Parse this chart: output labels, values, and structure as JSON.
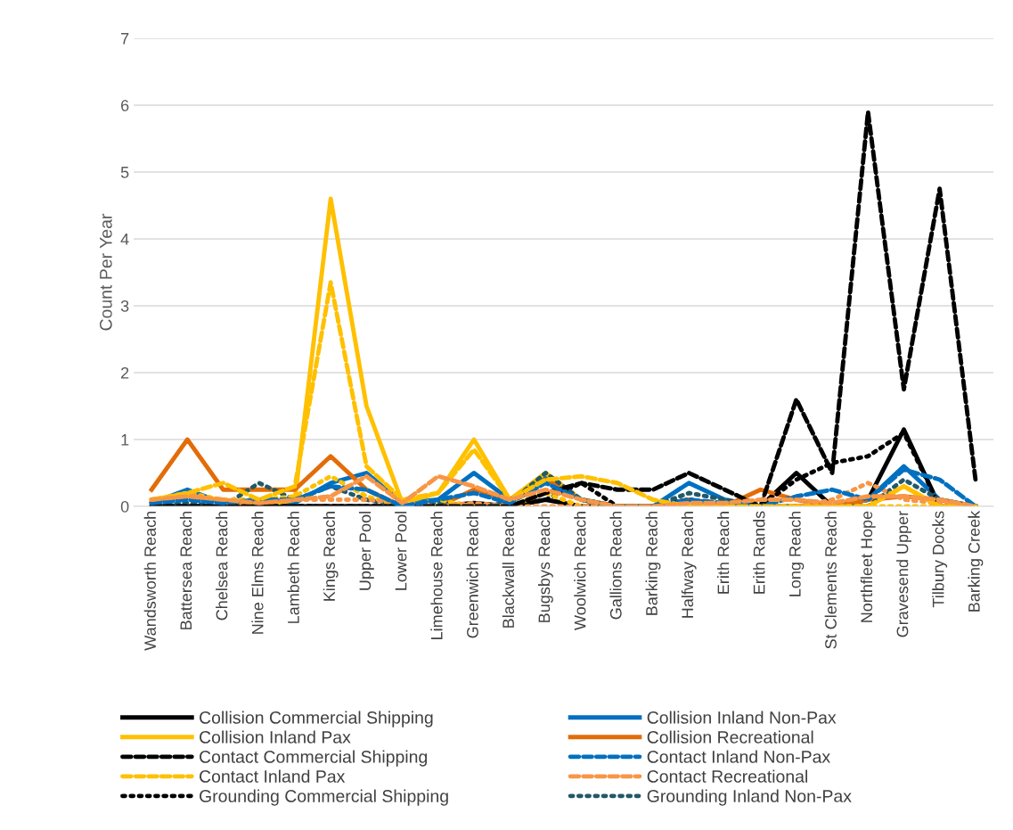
{
  "chart_data": {
    "type": "line",
    "ylabel": "Count Per Year",
    "categories": [
      "Wandsworth Reach",
      "Battersea Reach",
      "Chelsea Reach",
      "Nine Elms Reach",
      "Lambeth Reach",
      "Kings Reach",
      "Upper Pool",
      "Lower Pool",
      "Limehouse Reach",
      "Greenwich Reach",
      "Blackwall Reach",
      "Bugsbys Reach",
      "Woolwich Reach",
      "Gallions Reach",
      "Barking Reach",
      "Halfway Reach",
      "Erith Reach",
      "Erith Rands",
      "Long Reach",
      "St Clements Reach",
      "Northfleet Hope",
      "Gravesend Upper",
      "Tilbury Docks",
      "Barking Creek"
    ],
    "ylim": [
      0,
      7
    ],
    "yticks": [
      0,
      1,
      2,
      3,
      4,
      5,
      6,
      7
    ],
    "grid": "y",
    "legend": "bottom",
    "marker": "none",
    "series": [
      {
        "name": "Collision Commercial Shipping",
        "color": "#000000",
        "line_style": "solid",
        "values": [
          0,
          0,
          0,
          0,
          0,
          0,
          0,
          0,
          0,
          0.05,
          0,
          0.1,
          0,
          0,
          0,
          0.1,
          0,
          0,
          0.5,
          0,
          0.1,
          1.15,
          0,
          0
        ]
      },
      {
        "name": "Collision Inland Non-Pax",
        "color": "#0070c0",
        "line_style": "solid",
        "values": [
          0.05,
          0.25,
          0.05,
          0.05,
          0.05,
          0.35,
          0.5,
          0.05,
          0.1,
          0.5,
          0.1,
          0.45,
          0.1,
          0,
          0,
          0.35,
          0.1,
          0,
          0,
          0,
          0.1,
          0.6,
          0.1,
          0
        ]
      },
      {
        "name": "Collision Inland Pax",
        "color": "#ffc000",
        "line_style": "solid",
        "values": [
          0.1,
          0.15,
          0.1,
          0,
          0.1,
          4.6,
          1.5,
          0.05,
          0.2,
          1.0,
          0.1,
          0.5,
          0.1,
          0,
          0,
          0,
          0,
          0,
          0,
          0,
          0,
          0.3,
          0,
          0
        ]
      },
      {
        "name": "Collision Recreational",
        "color": "#e36c09",
        "line_style": "solid",
        "values": [
          0.25,
          1.0,
          0.25,
          0.25,
          0.25,
          0.75,
          0.25,
          0,
          0,
          0.25,
          0.1,
          0.4,
          0.1,
          0,
          0,
          0.1,
          0,
          0.25,
          0.1,
          0,
          0.1,
          0.15,
          0.1,
          0
        ]
      },
      {
        "name": "Contact Commercial Shipping",
        "color": "#000000",
        "line_style": "dashed",
        "values": [
          0,
          0,
          0,
          0,
          0,
          0,
          0,
          0,
          0,
          0,
          0,
          0.2,
          0.35,
          0.25,
          0.25,
          0.5,
          0.25,
          0,
          1.6,
          0.5,
          5.9,
          1.75,
          4.75,
          0.4
        ]
      },
      {
        "name": "Contact Inland Non-Pax",
        "color": "#0070c0",
        "line_style": "dashed",
        "values": [
          0.05,
          0.1,
          0.05,
          0.1,
          0.1,
          0.3,
          0.25,
          0,
          0.1,
          0.2,
          0.05,
          0.35,
          0.1,
          0,
          0,
          0.1,
          0.05,
          0,
          0.15,
          0.25,
          0.1,
          0.55,
          0.4,
          0
        ]
      },
      {
        "name": "Contact Inland Pax",
        "color": "#ffc000",
        "line_style": "dashed",
        "values": [
          0.1,
          0.2,
          0.35,
          0.1,
          0.3,
          3.35,
          0.6,
          0.1,
          0.2,
          0.85,
          0.1,
          0.4,
          0.45,
          0.35,
          0.1,
          0,
          0,
          0,
          0,
          0,
          0,
          0.3,
          0,
          0
        ]
      },
      {
        "name": "Contact Recreational",
        "color": "#f79646",
        "line_style": "dashed",
        "values": [
          0.1,
          0.15,
          0.1,
          0.05,
          0.1,
          0.15,
          0.45,
          0.05,
          0.45,
          0.3,
          0.1,
          0.25,
          0.1,
          0,
          0,
          0.05,
          0.05,
          0.1,
          0.1,
          0.05,
          0.15,
          0.15,
          0.1,
          0
        ]
      },
      {
        "name": "Grounding Commercial Shipping",
        "color": "#000000",
        "line_style": "dotted",
        "values": [
          0,
          0,
          0,
          0,
          0,
          0,
          0,
          0,
          0,
          0,
          0,
          0.1,
          0.35,
          0,
          0,
          0.1,
          0,
          0,
          0.4,
          0.65,
          0.75,
          1.1,
          0,
          0
        ]
      },
      {
        "name": "Grounding Inland Non-Pax",
        "color": "#215968",
        "line_style": "dotted",
        "values": [
          0,
          0.05,
          0,
          0.35,
          0.1,
          0.3,
          0.1,
          0,
          0.05,
          0,
          0.05,
          0.5,
          0.1,
          0,
          0,
          0.2,
          0.1,
          0,
          0,
          0,
          0,
          0.4,
          0.1,
          0
        ]
      },
      {
        "color": "#ffc000",
        "line_style": "dotted",
        "values": [
          0.1,
          0.2,
          0.1,
          0.1,
          0.15,
          0.45,
          0.15,
          0,
          0.1,
          0,
          0,
          0.2,
          0,
          0,
          0,
          0,
          0,
          0,
          0,
          0,
          0,
          0,
          0,
          0
        ]
      },
      {
        "color": "#f79646",
        "line_style": "dotted",
        "values": [
          0.05,
          0.2,
          0.05,
          0.05,
          0.1,
          0.1,
          0.1,
          0.05,
          0,
          0.05,
          0,
          0,
          0,
          0,
          0,
          0,
          0,
          0,
          0,
          0.1,
          0.35,
          0.1,
          0.05,
          0
        ]
      }
    ]
  }
}
